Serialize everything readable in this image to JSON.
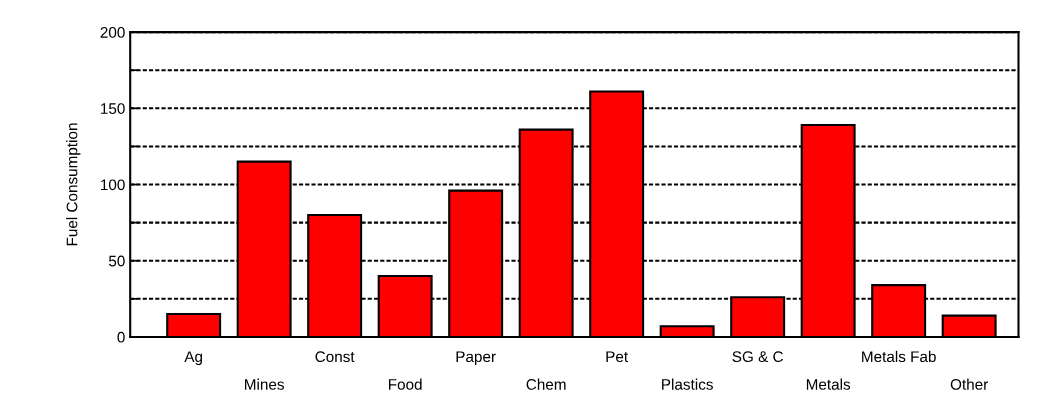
{
  "chart_data": {
    "type": "bar",
    "ylabel": "Fuel Consumption",
    "categories": [
      "Ag",
      "Mines",
      "Const",
      "Food",
      "Paper",
      "Chem",
      "Pet",
      "Plastics",
      "SG & C",
      "Metals",
      "Metals Fab",
      "Other"
    ],
    "values": [
      15,
      115,
      80,
      40,
      96,
      136,
      161,
      7,
      26,
      139,
      34,
      14
    ],
    "color": "#ff0000",
    "ylim": [
      0,
      200
    ],
    "yticks": [
      0,
      {
        "value": 25,
        "label": null
      },
      50,
      {
        "value": 75,
        "label": null
      },
      100,
      {
        "value": 125,
        "label": null
      },
      150,
      {
        "value": 175,
        "label": null
      },
      200
    ],
    "grid": "y"
  }
}
